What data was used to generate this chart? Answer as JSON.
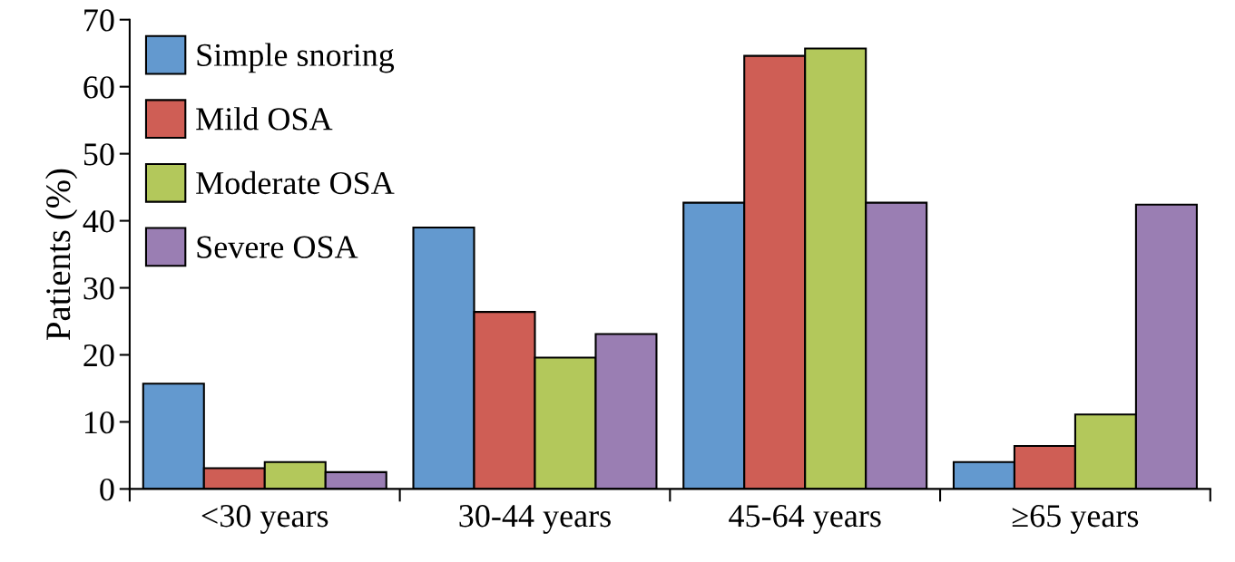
{
  "chart_data": {
    "type": "bar",
    "ylabel": "Patients (%)",
    "categories": [
      "<30 years",
      "30-44 years",
      "45-64 years",
      "≥65 years"
    ],
    "series": [
      {
        "name": "Simple snoring",
        "color": "#6399cf",
        "values": [
          15.7,
          39.0,
          42.7,
          4.0
        ]
      },
      {
        "name": "Mild OSA",
        "color": "#cf5e55",
        "values": [
          3.1,
          26.4,
          64.6,
          6.4
        ]
      },
      {
        "name": "Moderate OSA",
        "color": "#b3c85b",
        "values": [
          4.0,
          19.6,
          65.7,
          11.1
        ]
      },
      {
        "name": "Severe OSA",
        "color": "#9a7eb3",
        "values": [
          2.5,
          23.1,
          42.7,
          42.4
        ]
      }
    ],
    "ylim": [
      0,
      70
    ],
    "yticks": [
      0,
      10,
      20,
      30,
      40,
      50,
      60,
      70
    ],
    "grid": false,
    "legend": "top left"
  }
}
